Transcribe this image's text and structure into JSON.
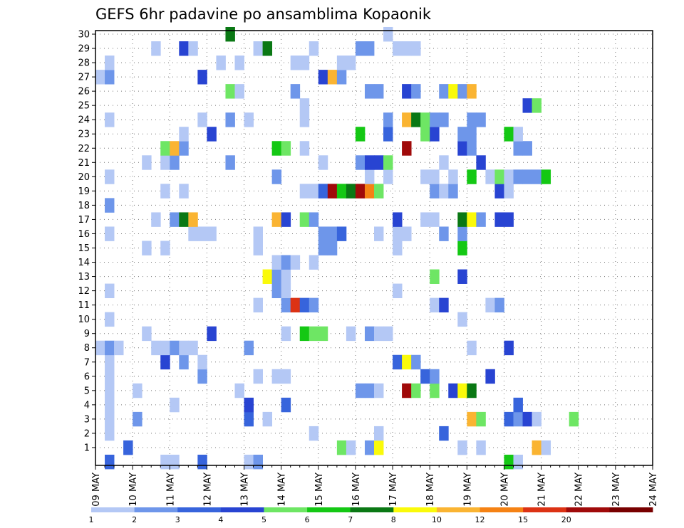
{
  "chart_data": {
    "type": "heatmap",
    "title": "GEFS 6hr padavine po ansamblima Kopaonik",
    "xlabel": "",
    "ylabel": "",
    "x_ticks": [
      "09 MAY",
      "10 MAY",
      "11 MAY",
      "12 MAY",
      "13 MAY",
      "14 MAY",
      "15 MAY",
      "16 MAY",
      "17 MAY",
      "18 MAY",
      "19 MAY",
      "20 MAY",
      "21 MAY",
      "22 MAY",
      "23 MAY",
      "24 MAY"
    ],
    "x_range_days": [
      0,
      15
    ],
    "steps_per_day": 4,
    "y_ticks": [
      "1",
      "2",
      "3",
      "4",
      "5",
      "6",
      "7",
      "8",
      "9",
      "10",
      "11",
      "12",
      "13",
      "14",
      "15",
      "16",
      "17",
      "18",
      "19",
      "20",
      "21",
      "22",
      "23",
      "24",
      "25",
      "26",
      "27",
      "28",
      "29",
      "30"
    ],
    "members": 30,
    "grid": "dotted",
    "legend": {
      "placement": "bottom",
      "labels": [
        "1",
        "2",
        "3",
        "4",
        "5",
        "6",
        "7",
        "8",
        "10",
        "12",
        "15",
        "20"
      ],
      "colors": [
        "#b4c8f5",
        "#6e96ea",
        "#3764dc",
        "#2844d2",
        "#6ee664",
        "#14c814",
        "#0a7814",
        "#fafa0a",
        "#fab432",
        "#f58214",
        "#dc3214",
        "#a00a0a",
        "#780000"
      ]
    },
    "cells": [
      {
        "m": 1,
        "s": [
          [
            3,
            "#3764dc"
          ],
          [
            26,
            "#6ee664"
          ],
          [
            27,
            "#b4c8f5"
          ],
          [
            29,
            "#6e96ea"
          ],
          [
            30,
            "#fafa0a"
          ],
          [
            39,
            "#b4c8f5"
          ],
          [
            41,
            "#b4c8f5"
          ],
          [
            47,
            "#fab432"
          ],
          [
            48,
            "#b4c8f5"
          ]
        ]
      },
      {
        "m": 2,
        "s": [
          [
            1,
            "#b4c8f5"
          ],
          [
            23,
            "#b4c8f5"
          ],
          [
            30,
            "#b4c8f5"
          ],
          [
            37,
            "#3764dc"
          ]
        ]
      },
      {
        "m": 3,
        "s": [
          [
            1,
            "#b4c8f5"
          ],
          [
            4,
            "#6e96ea"
          ],
          [
            16,
            "#3764dc"
          ],
          [
            18,
            "#b4c8f5"
          ],
          [
            40,
            "#fab432"
          ],
          [
            41,
            "#6ee664"
          ],
          [
            44,
            "#3764dc"
          ],
          [
            45,
            "#6e96ea"
          ],
          [
            46,
            "#2844d2"
          ],
          [
            47,
            "#b4c8f5"
          ],
          [
            51,
            "#6ee664"
          ]
        ]
      },
      {
        "m": 4,
        "s": [
          [
            1,
            "#b4c8f5"
          ],
          [
            8,
            "#b4c8f5"
          ],
          [
            16,
            "#2844d2"
          ],
          [
            20,
            "#3764dc"
          ],
          [
            45,
            "#3764dc"
          ]
        ]
      },
      {
        "m": 5,
        "s": [
          [
            1,
            "#b4c8f5"
          ],
          [
            4,
            "#b4c8f5"
          ],
          [
            15,
            "#b4c8f5"
          ],
          [
            28,
            "#6e96ea"
          ],
          [
            29,
            "#6e96ea"
          ],
          [
            30,
            "#b4c8f5"
          ],
          [
            33,
            "#a00a0a"
          ],
          [
            34,
            "#6ee664"
          ],
          [
            36,
            "#6ee664"
          ],
          [
            38,
            "#2844d2"
          ],
          [
            39,
            "#fafa0a"
          ],
          [
            40,
            "#0a7814"
          ]
        ]
      },
      {
        "m": 6,
        "s": [
          [
            1,
            "#b4c8f5"
          ],
          [
            11,
            "#6e96ea"
          ],
          [
            17,
            "#b4c8f5"
          ],
          [
            19,
            "#b4c8f5"
          ],
          [
            20,
            "#b4c8f5"
          ],
          [
            35,
            "#3764dc"
          ],
          [
            36,
            "#6e96ea"
          ],
          [
            42,
            "#2844d2"
          ]
        ]
      },
      {
        "m": 7,
        "s": [
          [
            1,
            "#b4c8f5"
          ],
          [
            7,
            "#2844d2"
          ],
          [
            9,
            "#6e96ea"
          ],
          [
            11,
            "#b4c8f5"
          ],
          [
            32,
            "#3764dc"
          ],
          [
            33,
            "#fafa0a"
          ],
          [
            34,
            "#6e96ea"
          ]
        ]
      },
      {
        "m": 8,
        "s": [
          [
            0,
            "#b4c8f5"
          ],
          [
            1,
            "#6e96ea"
          ],
          [
            2,
            "#b4c8f5"
          ],
          [
            6,
            "#b4c8f5"
          ],
          [
            7,
            "#b4c8f5"
          ],
          [
            8,
            "#6e96ea"
          ],
          [
            9,
            "#b4c8f5"
          ],
          [
            10,
            "#b4c8f5"
          ],
          [
            16,
            "#6e96ea"
          ],
          [
            40,
            "#b4c8f5"
          ],
          [
            44,
            "#2844d2"
          ]
        ]
      },
      {
        "m": 9,
        "s": [
          [
            5,
            "#b4c8f5"
          ],
          [
            12,
            "#2844d2"
          ],
          [
            20,
            "#b4c8f5"
          ],
          [
            22,
            "#14c814"
          ],
          [
            23,
            "#6ee664"
          ],
          [
            24,
            "#6ee664"
          ],
          [
            27,
            "#b4c8f5"
          ],
          [
            29,
            "#6e96ea"
          ],
          [
            30,
            "#b4c8f5"
          ],
          [
            31,
            "#b4c8f5"
          ]
        ]
      },
      {
        "m": 10,
        "s": [
          [
            1,
            "#b4c8f5"
          ],
          [
            39,
            "#b4c8f5"
          ]
        ]
      },
      {
        "m": 11,
        "s": [
          [
            17,
            "#b4c8f5"
          ],
          [
            20,
            "#6e96ea"
          ],
          [
            21,
            "#dc3214"
          ],
          [
            22,
            "#3764dc"
          ],
          [
            23,
            "#6e96ea"
          ],
          [
            36,
            "#b4c8f5"
          ],
          [
            37,
            "#2844d2"
          ],
          [
            42,
            "#b4c8f5"
          ],
          [
            43,
            "#6e96ea"
          ]
        ]
      },
      {
        "m": 12,
        "s": [
          [
            1,
            "#b4c8f5"
          ],
          [
            19,
            "#6e96ea"
          ],
          [
            20,
            "#b4c8f5"
          ],
          [
            32,
            "#b4c8f5"
          ]
        ]
      },
      {
        "m": 13,
        "s": [
          [
            18,
            "#fafa0a"
          ],
          [
            19,
            "#6e96ea"
          ],
          [
            20,
            "#b4c8f5"
          ],
          [
            36,
            "#6ee664"
          ],
          [
            39,
            "#2844d2"
          ]
        ]
      },
      {
        "m": 14,
        "s": [
          [
            19,
            "#b4c8f5"
          ],
          [
            20,
            "#6e96ea"
          ],
          [
            21,
            "#b4c8f5"
          ],
          [
            23,
            "#b4c8f5"
          ]
        ]
      },
      {
        "m": 15,
        "s": [
          [
            5,
            "#b4c8f5"
          ],
          [
            7,
            "#b4c8f5"
          ],
          [
            17,
            "#b4c8f5"
          ],
          [
            24,
            "#6e96ea"
          ],
          [
            25,
            "#6e96ea"
          ],
          [
            32,
            "#b4c8f5"
          ],
          [
            39,
            "#14c814"
          ]
        ]
      },
      {
        "m": 16,
        "s": [
          [
            1,
            "#b4c8f5"
          ],
          [
            10,
            "#b4c8f5"
          ],
          [
            11,
            "#b4c8f5"
          ],
          [
            12,
            "#b4c8f5"
          ],
          [
            17,
            "#b4c8f5"
          ],
          [
            24,
            "#6e96ea"
          ],
          [
            25,
            "#6e96ea"
          ],
          [
            26,
            "#3764dc"
          ],
          [
            30,
            "#b4c8f5"
          ],
          [
            32,
            "#b4c8f5"
          ],
          [
            33,
            "#b4c8f5"
          ],
          [
            37,
            "#6e96ea"
          ],
          [
            39,
            "#6e96ea"
          ]
        ]
      },
      {
        "m": 17,
        "s": [
          [
            6,
            "#b4c8f5"
          ],
          [
            8,
            "#6e96ea"
          ],
          [
            9,
            "#0a7814"
          ],
          [
            10,
            "#fab432"
          ],
          [
            19,
            "#fab432"
          ],
          [
            20,
            "#2844d2"
          ],
          [
            22,
            "#6ee664"
          ],
          [
            23,
            "#6e96ea"
          ],
          [
            32,
            "#2844d2"
          ],
          [
            35,
            "#b4c8f5"
          ],
          [
            36,
            "#b4c8f5"
          ],
          [
            39,
            "#0a7814"
          ],
          [
            40,
            "#fafa0a"
          ],
          [
            41,
            "#6e96ea"
          ],
          [
            43,
            "#2844d2"
          ],
          [
            44,
            "#2844d2"
          ]
        ]
      },
      {
        "m": 18,
        "s": [
          [
            1,
            "#6e96ea"
          ]
        ]
      },
      {
        "m": 19,
        "s": [
          [
            7,
            "#b4c8f5"
          ],
          [
            9,
            "#b4c8f5"
          ],
          [
            22,
            "#b4c8f5"
          ],
          [
            23,
            "#b4c8f5"
          ],
          [
            24,
            "#3764dc"
          ],
          [
            25,
            "#a00a0a"
          ],
          [
            26,
            "#14c814"
          ],
          [
            27,
            "#0a7814"
          ],
          [
            28,
            "#a00a0a"
          ],
          [
            29,
            "#f58214"
          ],
          [
            30,
            "#6ee664"
          ],
          [
            36,
            "#6e96ea"
          ],
          [
            37,
            "#b4c8f5"
          ],
          [
            38,
            "#6e96ea"
          ],
          [
            43,
            "#2844d2"
          ],
          [
            44,
            "#b4c8f5"
          ]
        ]
      },
      {
        "m": 20,
        "s": [
          [
            1,
            "#b4c8f5"
          ],
          [
            19,
            "#6e96ea"
          ],
          [
            29,
            "#b4c8f5"
          ],
          [
            31,
            "#b4c8f5"
          ],
          [
            35,
            "#b4c8f5"
          ],
          [
            36,
            "#b4c8f5"
          ],
          [
            38,
            "#b4c8f5"
          ],
          [
            40,
            "#14c814"
          ],
          [
            42,
            "#b4c8f5"
          ],
          [
            43,
            "#6ee664"
          ],
          [
            44,
            "#b4c8f5"
          ],
          [
            45,
            "#6e96ea"
          ],
          [
            46,
            "#6e96ea"
          ],
          [
            47,
            "#6e96ea"
          ],
          [
            48,
            "#14c814"
          ]
        ]
      },
      {
        "m": 21,
        "s": [
          [
            5,
            "#b4c8f5"
          ],
          [
            7,
            "#b4c8f5"
          ],
          [
            8,
            "#6e96ea"
          ],
          [
            14,
            "#6e96ea"
          ],
          [
            24,
            "#b4c8f5"
          ],
          [
            28,
            "#6e96ea"
          ],
          [
            29,
            "#2844d2"
          ],
          [
            30,
            "#2844d2"
          ],
          [
            31,
            "#6ee664"
          ],
          [
            37,
            "#b4c8f5"
          ],
          [
            41,
            "#2844d2"
          ]
        ]
      },
      {
        "m": 22,
        "s": [
          [
            7,
            "#6ee664"
          ],
          [
            8,
            "#fab432"
          ],
          [
            9,
            "#6e96ea"
          ],
          [
            19,
            "#14c814"
          ],
          [
            20,
            "#6ee664"
          ],
          [
            22,
            "#b4c8f5"
          ],
          [
            33,
            "#a00a0a"
          ],
          [
            39,
            "#2844d2"
          ],
          [
            40,
            "#6e96ea"
          ],
          [
            45,
            "#6e96ea"
          ],
          [
            46,
            "#6e96ea"
          ]
        ]
      },
      {
        "m": 23,
        "s": [
          [
            9,
            "#b4c8f5"
          ],
          [
            12,
            "#2844d2"
          ],
          [
            28,
            "#14c814"
          ],
          [
            31,
            "#3764dc"
          ],
          [
            35,
            "#6ee664"
          ],
          [
            36,
            "#2844d2"
          ],
          [
            39,
            "#6e96ea"
          ],
          [
            40,
            "#6e96ea"
          ],
          [
            44,
            "#14c814"
          ],
          [
            45,
            "#b4c8f5"
          ]
        ]
      },
      {
        "m": 24,
        "s": [
          [
            1,
            "#b4c8f5"
          ],
          [
            11,
            "#b4c8f5"
          ],
          [
            14,
            "#6e96ea"
          ],
          [
            16,
            "#b4c8f5"
          ],
          [
            22,
            "#b4c8f5"
          ],
          [
            31,
            "#6e96ea"
          ],
          [
            33,
            "#fab432"
          ],
          [
            34,
            "#0a7814"
          ],
          [
            35,
            "#6ee664"
          ],
          [
            36,
            "#6e96ea"
          ],
          [
            37,
            "#6e96ea"
          ],
          [
            40,
            "#6e96ea"
          ],
          [
            41,
            "#6e96ea"
          ]
        ]
      },
      {
        "m": 25,
        "s": [
          [
            22,
            "#b4c8f5"
          ],
          [
            46,
            "#2844d2"
          ],
          [
            47,
            "#6ee664"
          ]
        ]
      },
      {
        "m": 26,
        "s": [
          [
            14,
            "#6ee664"
          ],
          [
            15,
            "#b4c8f5"
          ],
          [
            21,
            "#6e96ea"
          ],
          [
            29,
            "#6e96ea"
          ],
          [
            30,
            "#6e96ea"
          ],
          [
            33,
            "#2844d2"
          ],
          [
            34,
            "#6e96ea"
          ],
          [
            37,
            "#6e96ea"
          ],
          [
            38,
            "#fafa0a"
          ],
          [
            39,
            "#6e96ea"
          ],
          [
            40,
            "#fab432"
          ]
        ]
      },
      {
        "m": 27,
        "s": [
          [
            0,
            "#b4c8f5"
          ],
          [
            1,
            "#6e96ea"
          ],
          [
            11,
            "#2844d2"
          ],
          [
            24,
            "#2844d2"
          ],
          [
            25,
            "#fab432"
          ],
          [
            26,
            "#6e96ea"
          ]
        ]
      },
      {
        "m": 28,
        "s": [
          [
            1,
            "#b4c8f5"
          ],
          [
            13,
            "#b4c8f5"
          ],
          [
            15,
            "#b4c8f5"
          ],
          [
            21,
            "#b4c8f5"
          ],
          [
            22,
            "#b4c8f5"
          ],
          [
            26,
            "#b4c8f5"
          ],
          [
            27,
            "#b4c8f5"
          ]
        ]
      },
      {
        "m": 29,
        "s": [
          [
            6,
            "#b4c8f5"
          ],
          [
            9,
            "#2844d2"
          ],
          [
            10,
            "#b4c8f5"
          ],
          [
            17,
            "#b4c8f5"
          ],
          [
            18,
            "#0a7814"
          ],
          [
            23,
            "#b4c8f5"
          ],
          [
            28,
            "#6e96ea"
          ],
          [
            29,
            "#6e96ea"
          ],
          [
            32,
            "#b4c8f5"
          ],
          [
            33,
            "#b4c8f5"
          ],
          [
            34,
            "#b4c8f5"
          ]
        ]
      },
      {
        "m": 30,
        "s": [
          [
            14,
            "#0a7814"
          ],
          [
            31,
            "#b4c8f5"
          ]
        ]
      },
      {
        "m": 0,
        "s": [
          [
            1,
            "#3764dc"
          ],
          [
            7,
            "#b4c8f5"
          ],
          [
            8,
            "#b4c8f5"
          ],
          [
            11,
            "#3764dc"
          ],
          [
            16,
            "#b4c8f5"
          ],
          [
            17,
            "#6e96ea"
          ],
          [
            44,
            "#14c814"
          ],
          [
            45,
            "#b4c8f5"
          ]
        ]
      }
    ]
  }
}
